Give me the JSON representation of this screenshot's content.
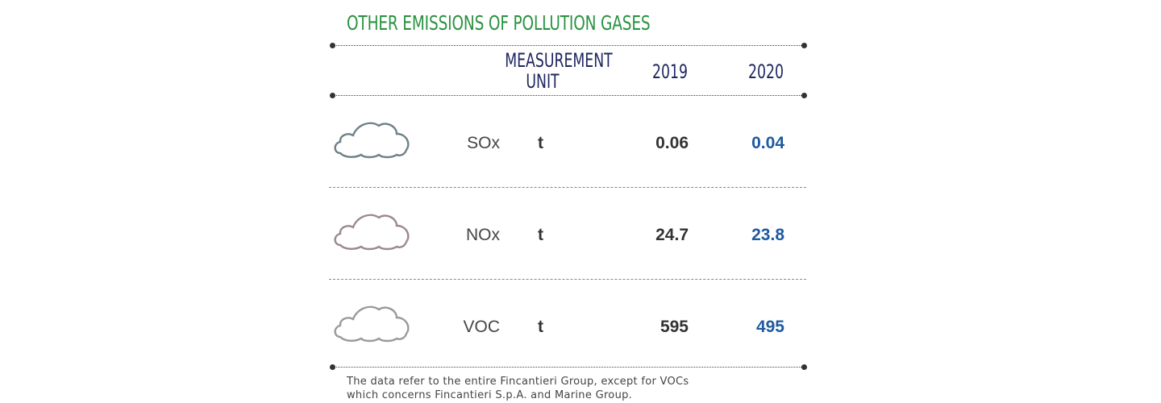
{
  "title": "OTHER EMISSIONS OF POLLUTION GASES",
  "headers": {
    "unit": "MEASUREMENT UNIT",
    "year1": "2019",
    "year2": "2020"
  },
  "rows": [
    {
      "gas": "SOx",
      "unit": "t",
      "v2019": "0.06",
      "v2020": "0.04",
      "icon": "cloud-icon",
      "icon_color": "#6e8088"
    },
    {
      "gas": "NOx",
      "unit": "t",
      "v2019": "24.7",
      "v2020": "23.8",
      "icon": "cloud-icon",
      "icon_color": "#9c8890"
    },
    {
      "gas": "VOC",
      "unit": "t",
      "v2019": "595",
      "v2020": "495",
      "icon": "cloud-icon",
      "icon_color": "#9a9a9a"
    }
  ],
  "note_lines": [
    "The data refer to the entire Fincantieri Group, except for VOCs",
    "which concerns Fincantieri S.p.A. and Marine Group."
  ],
  "colors": {
    "title": "#2a9240",
    "header": "#1f2660",
    "value_2020": "#1e5aa0"
  }
}
